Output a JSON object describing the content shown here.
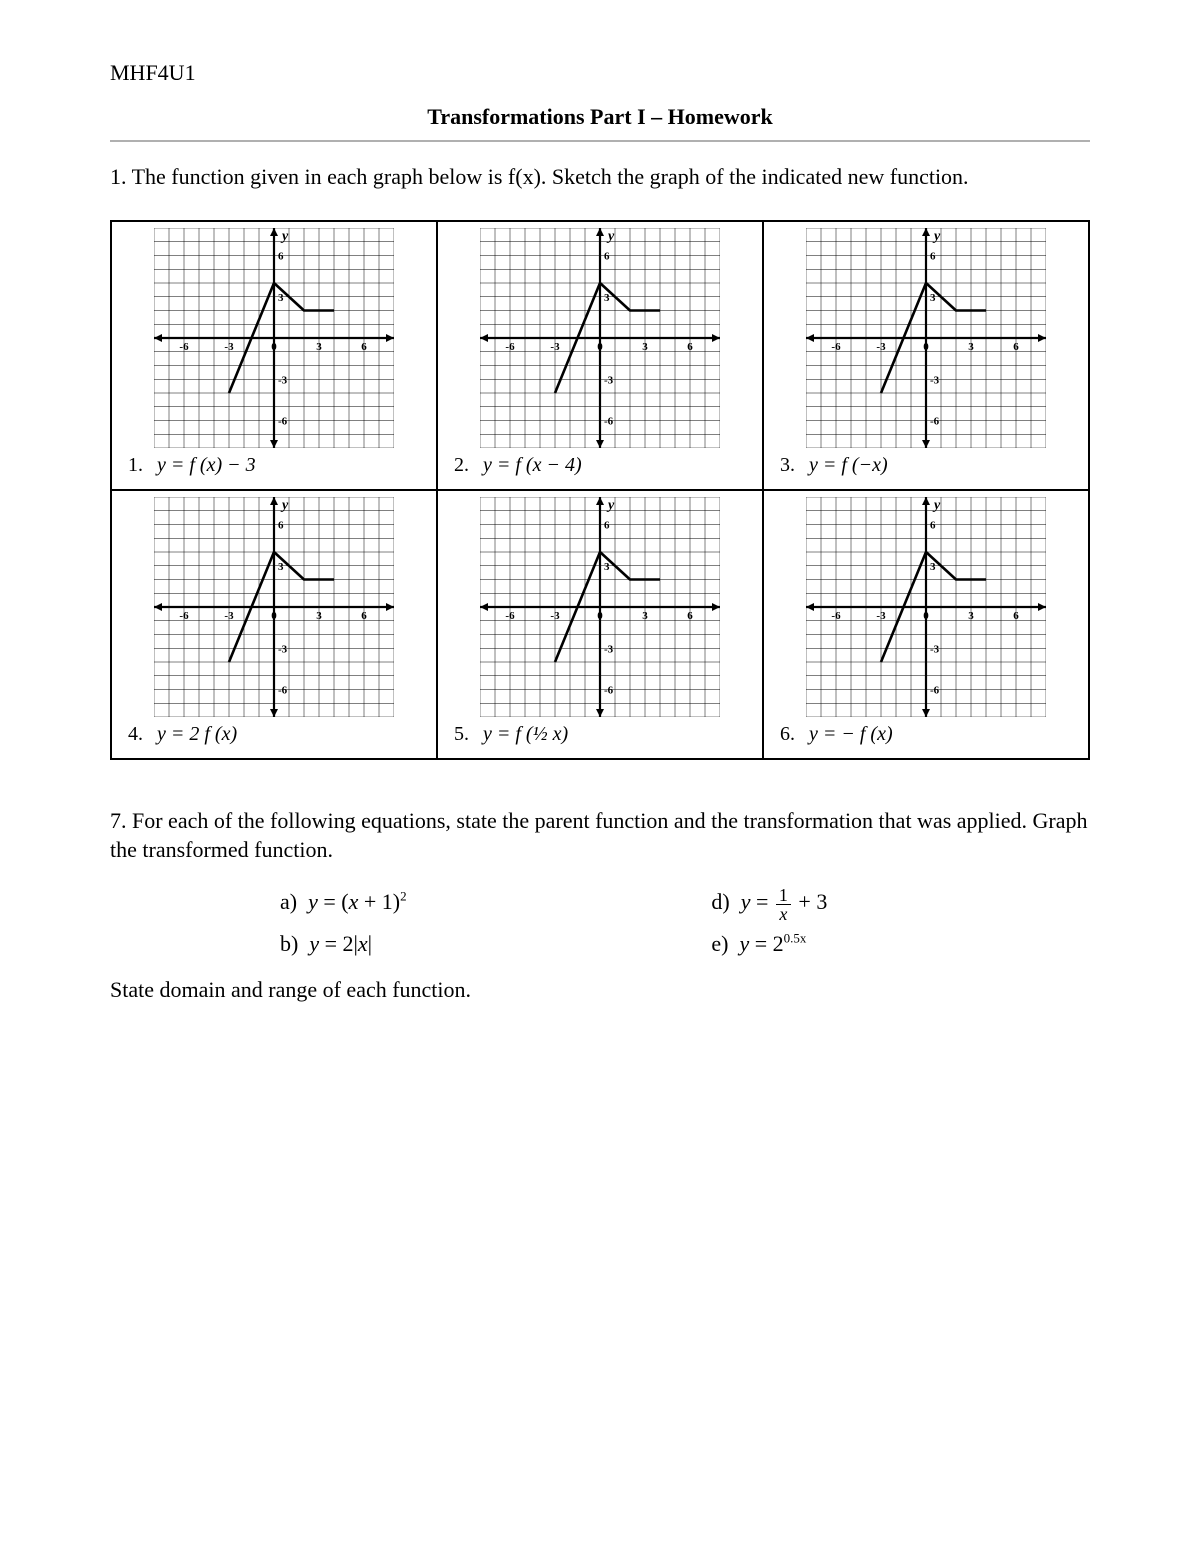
{
  "course_code": "MHF4U1",
  "doc_title": "Transformations Part I – Homework",
  "q1_prompt": "1. The function given in each graph below is f(x). Sketch the graph of the indicated new function.",
  "graph": {
    "xmin": -8,
    "xmax": 8,
    "ymin": -8,
    "ymax": 8,
    "xtick_labels": [
      -6,
      -3,
      0,
      3,
      6
    ],
    "ytick_labels": [
      -6,
      -3,
      3,
      6
    ],
    "grid_color": "#000000",
    "grid_stroke": 0.5,
    "axis_stroke": 2.2,
    "y_label": "y",
    "function_points": [
      [
        -3,
        -4
      ],
      [
        0,
        4
      ],
      [
        2,
        2
      ],
      [
        4,
        2
      ]
    ],
    "function_stroke": 2.6,
    "function_color": "#000000",
    "tick_fontsize": 11,
    "ylabel_fontsize": 14
  },
  "cells": [
    {
      "num": "1.",
      "eq_html": "y = f (x) − 3"
    },
    {
      "num": "2.",
      "eq_html": "y = f (x − 4)"
    },
    {
      "num": "3.",
      "eq_html": "y = f (−x)"
    },
    {
      "num": "4.",
      "eq_html": "y = 2 f (x)"
    },
    {
      "num": "5.",
      "eq_html": "y = f (½ x)"
    },
    {
      "num": "6.",
      "eq_html": "y = − f (x)"
    }
  ],
  "q7_prompt": "7. For each of the following equations, state the parent function and the transformation that was applied. Graph the transformed function.",
  "q7_items": {
    "a_label": "a)",
    "a_eq": "y = (x + 1)²",
    "b_label": "b)",
    "b_eq": "y = 2|x|",
    "d_label": "d)",
    "d_eq_pre": "y = ",
    "d_eq_frac_n": "1",
    "d_eq_frac_d": "x",
    "d_eq_post": " + 3",
    "e_label": "e)",
    "e_eq_pre": "y = 2",
    "e_eq_sup": "0.5x"
  },
  "footer": "State domain and range of each function."
}
